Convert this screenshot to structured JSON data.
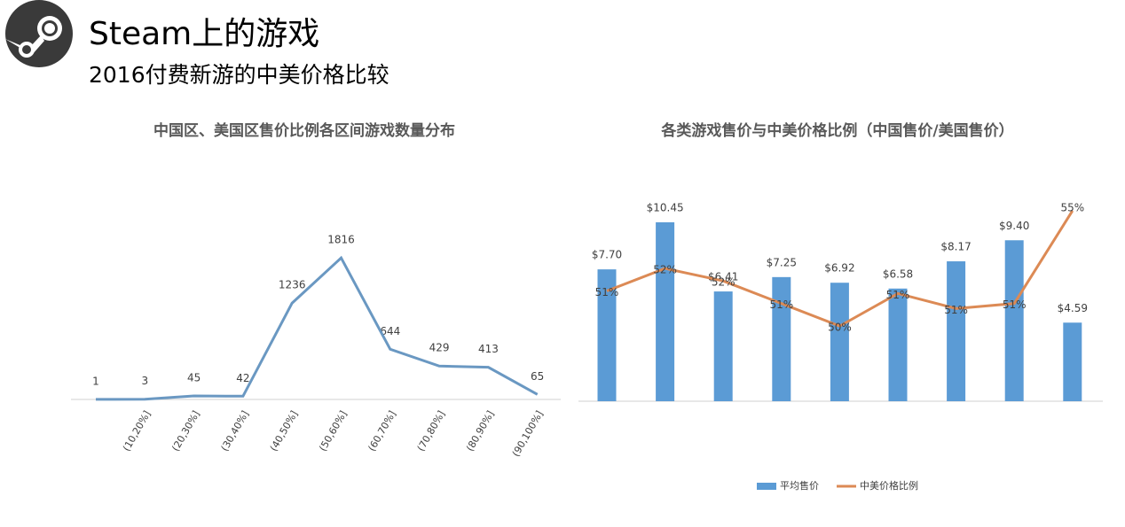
{
  "header": {
    "title": "Steam上的游戏",
    "subtitle": "2016付费新游的中美价格比较"
  },
  "chart_data": [
    {
      "type": "line",
      "title": "中国区、美国区售价比例各区间游戏数量分布",
      "categories": [
        null,
        "(10,20%]",
        "(20,30%]",
        "(30,40%]",
        "(40,50%]",
        "(50,60%]",
        "(60,70%]",
        "(70,80%]",
        "(80,90%]",
        "(90,100%]"
      ],
      "values": [
        1,
        3,
        45,
        42,
        1236,
        1816,
        644,
        429,
        413,
        65
      ],
      "color": "#6a98c2",
      "ylim": [
        0,
        2000
      ]
    },
    {
      "type": "combo",
      "title": "各类游戏售价与中美价格比例（中国售价/美国售价）",
      "categories": [
        null,
        null,
        null,
        null,
        null,
        null,
        null,
        null,
        null
      ],
      "ylim": [
        0,
        12
      ],
      "y2lim": [
        47,
        55.2
      ],
      "legend": "bottom",
      "series": [
        {
          "name": "平均售价",
          "type": "bar",
          "color": "#5b9bd5",
          "values": [
            7.7,
            10.45,
            6.41,
            7.25,
            6.92,
            6.58,
            8.17,
            9.4,
            4.59
          ],
          "value_labels": [
            "$7.70",
            "$10.45",
            "$6.41",
            "$7.25",
            "$6.92",
            "$6.58",
            "$8.17",
            "$9.40",
            "$4.59"
          ]
        },
        {
          "name": "中美价格比例",
          "type": "line",
          "axis": "y2",
          "color": "#dc8a55",
          "values": [
            51.4,
            52.3,
            51.8,
            50.9,
            50.0,
            51.3,
            50.7,
            50.9,
            54.6
          ],
          "value_labels": [
            "51%",
            "52%",
            "52%",
            "51%",
            "50%",
            "51%",
            "51%",
            "51%",
            "55%"
          ]
        }
      ]
    }
  ]
}
